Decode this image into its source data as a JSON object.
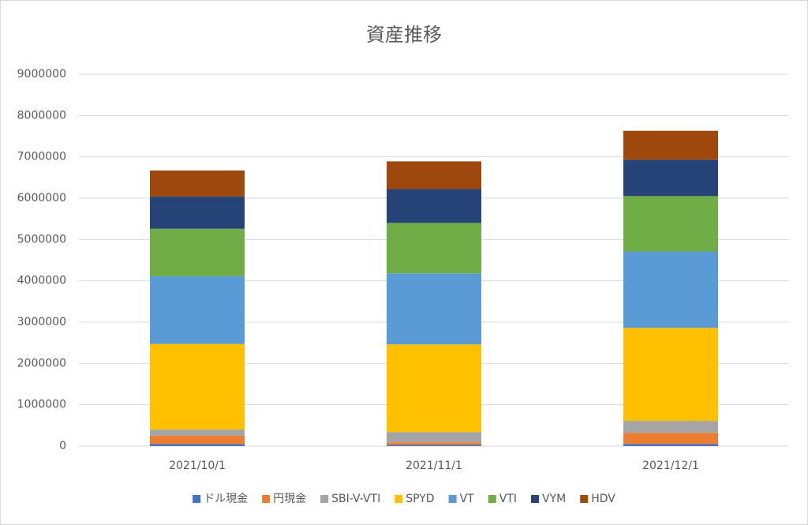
{
  "chart_data": {
    "type": "stacked_bar",
    "title": "資産推移",
    "categories": [
      "2021/10/1",
      "2021/11/1",
      "2021/12/1"
    ],
    "series": [
      {
        "name": "ドル現金",
        "color": "#4472c4",
        "values": [
          50000,
          30000,
          50000
        ]
      },
      {
        "name": "円現金",
        "color": "#ed7d31",
        "values": [
          200000,
          60000,
          270000
        ]
      },
      {
        "name": "SBI-V-VTI",
        "color": "#a5a5a5",
        "values": [
          150000,
          250000,
          290000
        ]
      },
      {
        "name": "SPYD",
        "color": "#ffc000",
        "values": [
          2070000,
          2120000,
          2250000
        ]
      },
      {
        "name": "VT",
        "color": "#5b9bd5",
        "values": [
          1640000,
          1720000,
          1850000
        ]
      },
      {
        "name": "VTI",
        "color": "#70ad47",
        "values": [
          1150000,
          1220000,
          1340000
        ]
      },
      {
        "name": "VYM",
        "color": "#264478",
        "values": [
          780000,
          820000,
          880000
        ]
      },
      {
        "name": "HDV",
        "color": "#9e480e",
        "values": [
          630000,
          670000,
          700000
        ]
      }
    ],
    "ylim": [
      0,
      9000000
    ],
    "yticks": [
      0,
      1000000,
      2000000,
      3000000,
      4000000,
      5000000,
      6000000,
      7000000,
      8000000,
      9000000
    ],
    "grid": true,
    "legend": "bottom"
  }
}
